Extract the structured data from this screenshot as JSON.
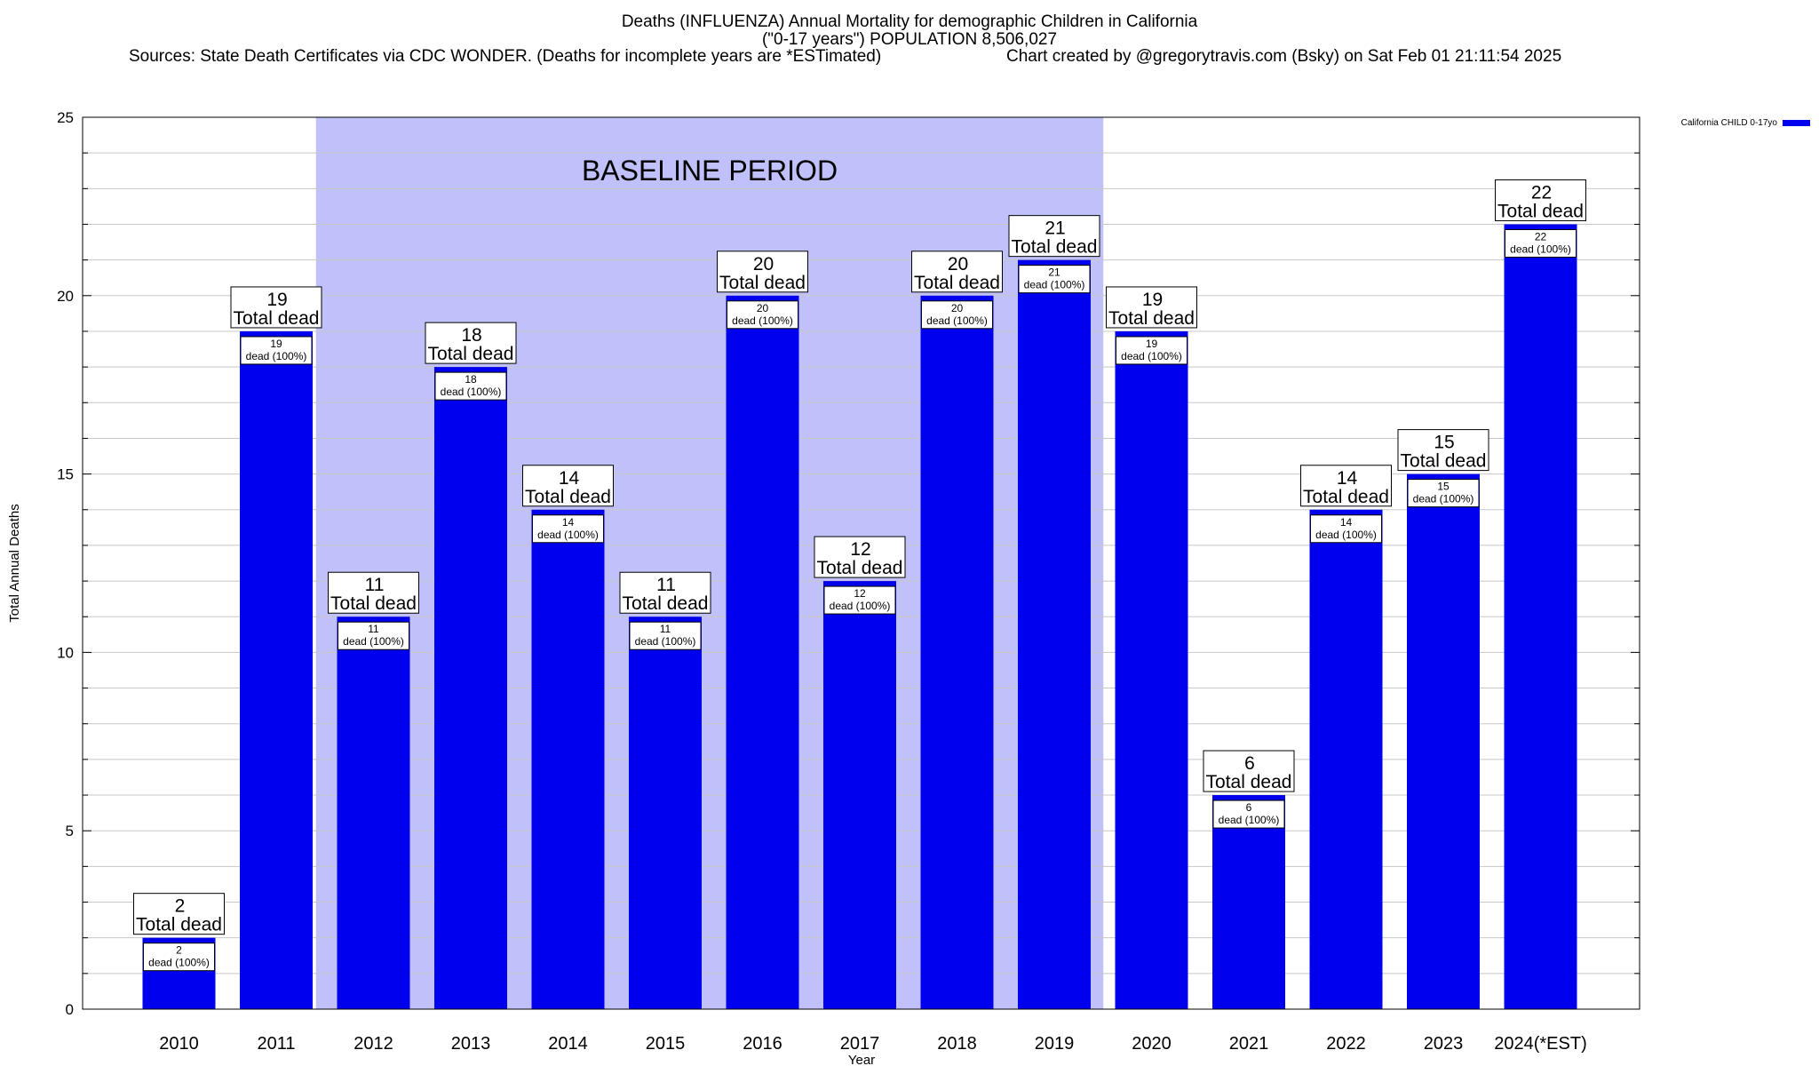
{
  "chart_data": {
    "type": "bar",
    "title": "Deaths (INFLUENZA) Annual Mortality for demographic Children in California",
    "subtitle": "(\"0-17 years\") POPULATION 8,506,027",
    "sources": "Sources: State Death Certificates via CDC WONDER. (Deaths for incomplete years are *ESTimated)",
    "credit": "Chart created by @gregorytravis.com (Bsky) on Sat Feb 01 21:11:54 2025",
    "xlabel": "Year",
    "ylabel": "Total Annual Deaths",
    "ylim": [
      0,
      25
    ],
    "yticks": [
      0,
      5,
      10,
      15,
      20,
      25
    ],
    "grid": true,
    "categories": [
      "2010",
      "2011",
      "2012",
      "2013",
      "2014",
      "2015",
      "2016",
      "2017",
      "2018",
      "2019",
      "2020",
      "2021",
      "2022",
      "2023",
      "2024(*EST)"
    ],
    "series": [
      {
        "name": "California CHILD 0-17yo",
        "values": [
          2,
          19,
          11,
          18,
          14,
          11,
          20,
          12,
          20,
          21,
          19,
          6,
          14,
          15,
          22
        ]
      }
    ],
    "bar_label_caption": "Total dead",
    "inner_label_caption": "dead (100%)",
    "baseline": {
      "label": "BASELINE PERIOD",
      "from": "2012",
      "to": "2019"
    },
    "legend_position": "top-right",
    "colors": {
      "bar": "#0000ee",
      "baseline": "#c0c0fa",
      "grid": "#c8c8c8"
    }
  }
}
